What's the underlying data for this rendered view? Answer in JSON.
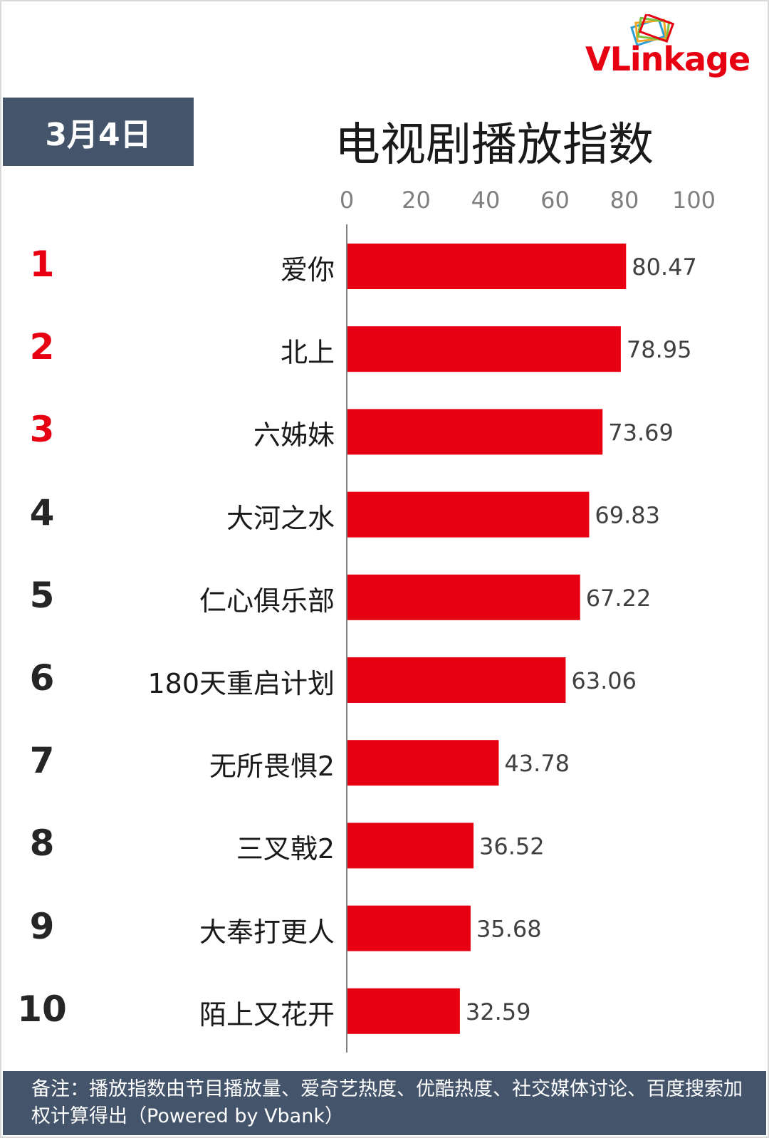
{
  "header": {
    "date": "3月4日",
    "logo_text": "VLinkage"
  },
  "footer": {
    "note": "备注：播放指数由节目播放量、爱奇艺热度、优酷热度、社交媒体讨论、百度搜索加权计算得出（Powered by Vbank）"
  },
  "colors": {
    "bar": "#e60012",
    "rank_top3": "#e60012",
    "rank_other": "#262626",
    "panel": "#44546a"
  },
  "chart_data": {
    "type": "bar",
    "orientation": "horizontal",
    "title": "电视剧播放指数",
    "xlim": [
      0,
      100
    ],
    "x_ticks": [
      0,
      20,
      40,
      60,
      80,
      100
    ],
    "grid": false,
    "ranks": [
      "1",
      "2",
      "3",
      "4",
      "5",
      "6",
      "7",
      "8",
      "9",
      "10"
    ],
    "categories": [
      "爱你",
      "北上",
      "六姊妹",
      "大河之水",
      "仁心俱乐部",
      "180天重启计划",
      "无所畏惧2",
      "三叉戟2",
      "大奉打更人",
      "陌上又花开"
    ],
    "values": [
      80.47,
      78.95,
      73.69,
      69.83,
      67.22,
      63.06,
      43.78,
      36.52,
      35.68,
      32.59
    ],
    "value_labels": [
      "80.47",
      "78.95",
      "73.69",
      "69.83",
      "67.22",
      "63.06",
      "43.78",
      "36.52",
      "35.68",
      "32.59"
    ]
  }
}
